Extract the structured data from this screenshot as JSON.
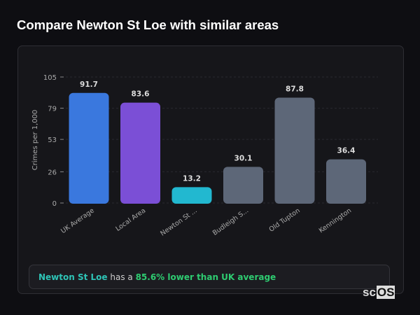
{
  "title": "Compare Newton St Loe with similar areas",
  "chart_data": {
    "type": "bar",
    "ylabel": "Crimes per 1,000",
    "ylim": [
      0,
      105
    ],
    "yticks": [
      0,
      26,
      53,
      79,
      105
    ],
    "grid": true,
    "categories": [
      "UK Average",
      "Local Area",
      "Newton St ...",
      "Budleigh S...",
      "Old Tupton",
      "Kennington"
    ],
    "values": [
      91.7,
      83.6,
      13.2,
      30.1,
      87.8,
      36.4
    ],
    "value_labels": [
      "91.7",
      "83.6",
      "13.2",
      "30.1",
      "87.8",
      "36.4"
    ],
    "colors": [
      "#3a78de",
      "#7b4fd6",
      "#22b8d0",
      "#5d6778",
      "#5d6778",
      "#5d6778"
    ]
  },
  "footer": {
    "area": "Newton St Loe",
    "middle": " has a ",
    "comparison": "85.6% lower than UK average"
  },
  "logo": {
    "text_a": "sc",
    "text_b": "OS"
  }
}
